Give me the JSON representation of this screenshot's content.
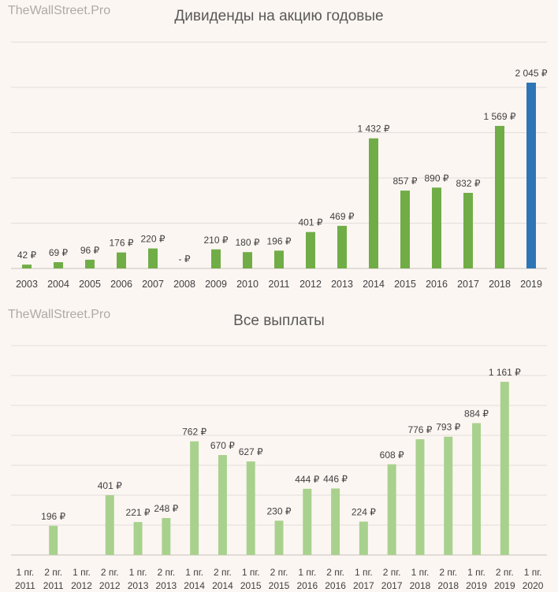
{
  "chart_data": [
    {
      "type": "bar",
      "watermark": "TheWallStreet.Pro",
      "title": "Дивиденды на акцию годовые",
      "categories": [
        "2003",
        "2004",
        "2005",
        "2006",
        "2007",
        "2008",
        "2009",
        "2010",
        "2011",
        "2012",
        "2013",
        "2014",
        "2015",
        "2016",
        "2017",
        "2018",
        "2019"
      ],
      "values": [
        42,
        69,
        96,
        176,
        220,
        0,
        210,
        180,
        196,
        401,
        469,
        1432,
        857,
        890,
        832,
        1569,
        2045
      ],
      "data_labels": [
        "42 ₽",
        "69 ₽",
        "96 ₽",
        "176 ₽",
        "220 ₽",
        "-   ₽",
        "210 ₽",
        "180 ₽",
        "196 ₽",
        "401 ₽",
        "469 ₽",
        "1 432 ₽",
        "857 ₽",
        "890 ₽",
        "832 ₽",
        "1 569 ₽",
        "2 045 ₽"
      ],
      "colors": {
        "default": "#70ad47",
        "highlight": "#2e75b6",
        "highlight_index": 16
      },
      "ylim": [
        0,
        2100
      ],
      "grid": true,
      "xlabel": "",
      "ylabel": ""
    },
    {
      "type": "bar",
      "watermark": "TheWallStreet.Pro",
      "title": "Все выплаты",
      "categories": [
        [
          "1 пг.",
          "2011"
        ],
        [
          "2 пг.",
          "2011"
        ],
        [
          "1 пг.",
          "2012"
        ],
        [
          "2 пг.",
          "2012"
        ],
        [
          "1 пг.",
          "2013"
        ],
        [
          "2 пг.",
          "2013"
        ],
        [
          "1 пг.",
          "2014"
        ],
        [
          "2 пг.",
          "2014"
        ],
        [
          "1 пг.",
          "2015"
        ],
        [
          "2 пг.",
          "2015"
        ],
        [
          "1 пг.",
          "2016"
        ],
        [
          "2 пг.",
          "2016"
        ],
        [
          "1 пг.",
          "2017"
        ],
        [
          "2 пг.",
          "2017"
        ],
        [
          "1 пг.",
          "2018"
        ],
        [
          "2 пг.",
          "2018"
        ],
        [
          "1 пг.",
          "2019"
        ],
        [
          "2 пг.",
          "2019"
        ],
        [
          "1 пг.",
          "2020"
        ]
      ],
      "values": [
        0,
        196,
        0,
        401,
        221,
        248,
        762,
        670,
        627,
        230,
        444,
        446,
        224,
        608,
        776,
        793,
        884,
        1161,
        0
      ],
      "data_labels": [
        "",
        "196 ₽",
        "",
        "401 ₽",
        "221 ₽",
        "248 ₽",
        "762 ₽",
        "670 ₽",
        "627 ₽",
        "230 ₽",
        "444 ₽",
        "446 ₽",
        "224 ₽",
        "608 ₽",
        "776 ₽",
        "793 ₽",
        "884 ₽",
        "1 161 ₽",
        ""
      ],
      "colors": {
        "default": "#a9d18e"
      },
      "ylim": [
        0,
        1300
      ],
      "grid": true,
      "xlabel": "",
      "ylabel": ""
    }
  ]
}
